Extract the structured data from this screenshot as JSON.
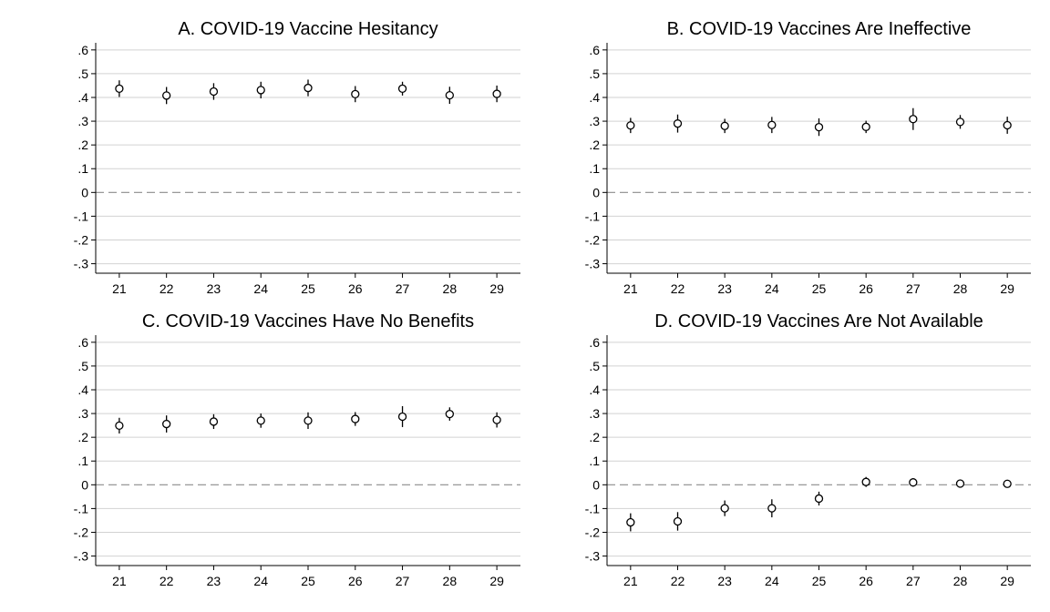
{
  "figure": {
    "panel_count": 4,
    "layout": "2x2 grid"
  },
  "chart_data": [
    {
      "type": "scatter",
      "title": "A. COVID-19 Vaccine Hesitancy",
      "xlabel": "",
      "ylabel": "",
      "x": [
        21,
        22,
        23,
        24,
        25,
        26,
        27,
        28,
        29
      ],
      "x_tick_labels": [
        "21",
        "22",
        "23",
        "24",
        "25",
        "26",
        "27",
        "28",
        "29"
      ],
      "y_ticks": [
        0.6,
        0.5,
        0.4,
        0.3,
        0.2,
        0.1,
        0,
        -0.1,
        -0.2,
        -0.3
      ],
      "y_tick_labels": [
        ".6",
        ".5",
        ".4",
        ".3",
        ".2",
        ".1",
        "0",
        "-.1",
        "-.2",
        "-.3"
      ],
      "ylim": [
        -0.34,
        0.63
      ],
      "xlim": [
        20.5,
        29.5
      ],
      "grid": true,
      "reference_line": 0,
      "marker": "hollow-circle",
      "series": [
        {
          "values": [
            0.437,
            0.408,
            0.425,
            0.431,
            0.44,
            0.414,
            0.437,
            0.409,
            0.415
          ],
          "ci_low": [
            0.402,
            0.372,
            0.39,
            0.396,
            0.405,
            0.38,
            0.408,
            0.373,
            0.38
          ],
          "ci_high": [
            0.472,
            0.444,
            0.46,
            0.466,
            0.475,
            0.448,
            0.466,
            0.445,
            0.45
          ]
        }
      ]
    },
    {
      "type": "scatter",
      "title": "B. COVID-19 Vaccines Are Ineffective",
      "xlabel": "",
      "ylabel": "",
      "x": [
        21,
        22,
        23,
        24,
        25,
        26,
        27,
        28,
        29
      ],
      "x_tick_labels": [
        "21",
        "22",
        "23",
        "24",
        "25",
        "26",
        "27",
        "28",
        "29"
      ],
      "y_ticks": [
        0.6,
        0.5,
        0.4,
        0.3,
        0.2,
        0.1,
        0,
        -0.1,
        -0.2,
        -0.3
      ],
      "y_tick_labels": [
        ".6",
        ".5",
        ".4",
        ".3",
        ".2",
        ".1",
        "0",
        "-.1",
        "-.2",
        "-.3"
      ],
      "ylim": [
        -0.34,
        0.63
      ],
      "xlim": [
        20.5,
        29.5
      ],
      "grid": true,
      "reference_line": 0,
      "marker": "hollow-circle",
      "series": [
        {
          "values": [
            0.282,
            0.29,
            0.28,
            0.284,
            0.275,
            0.276,
            0.309,
            0.297,
            0.283
          ],
          "ci_low": [
            0.25,
            0.252,
            0.25,
            0.25,
            0.238,
            0.25,
            0.263,
            0.268,
            0.247
          ],
          "ci_high": [
            0.314,
            0.328,
            0.31,
            0.318,
            0.312,
            0.302,
            0.355,
            0.326,
            0.319
          ]
        }
      ]
    },
    {
      "type": "scatter",
      "title": "C. COVID-19 Vaccines Have No Benefits",
      "xlabel": "",
      "ylabel": "",
      "x": [
        21,
        22,
        23,
        24,
        25,
        26,
        27,
        28,
        29
      ],
      "x_tick_labels": [
        "21",
        "22",
        "23",
        "24",
        "25",
        "26",
        "27",
        "28",
        "29"
      ],
      "y_ticks": [
        0.6,
        0.5,
        0.4,
        0.3,
        0.2,
        0.1,
        0,
        -0.1,
        -0.2,
        -0.3
      ],
      "y_tick_labels": [
        ".6",
        ".5",
        ".4",
        ".3",
        ".2",
        ".1",
        "0",
        "-.1",
        "-.2",
        "-.3"
      ],
      "ylim": [
        -0.34,
        0.63
      ],
      "xlim": [
        20.5,
        29.5
      ],
      "grid": true,
      "reference_line": 0,
      "marker": "hollow-circle",
      "series": [
        {
          "values": [
            0.249,
            0.256,
            0.266,
            0.27,
            0.27,
            0.277,
            0.287,
            0.298,
            0.273
          ],
          "ci_low": [
            0.216,
            0.22,
            0.235,
            0.24,
            0.235,
            0.248,
            0.243,
            0.27,
            0.241
          ],
          "ci_high": [
            0.282,
            0.292,
            0.297,
            0.3,
            0.305,
            0.306,
            0.331,
            0.326,
            0.305
          ]
        }
      ]
    },
    {
      "type": "scatter",
      "title": "D. COVID-19 Vaccines Are Not Available",
      "xlabel": "",
      "ylabel": "",
      "x": [
        21,
        22,
        23,
        24,
        25,
        26,
        27,
        28,
        29
      ],
      "x_tick_labels": [
        "21",
        "22",
        "23",
        "24",
        "25",
        "26",
        "27",
        "28",
        "29"
      ],
      "y_ticks": [
        0.6,
        0.5,
        0.4,
        0.3,
        0.2,
        0.1,
        0,
        -0.1,
        -0.2,
        -0.3
      ],
      "y_tick_labels": [
        ".6",
        ".5",
        ".4",
        ".3",
        ".2",
        ".1",
        "0",
        "-.1",
        "-.2",
        "-.3"
      ],
      "ylim": [
        -0.34,
        0.63
      ],
      "xlim": [
        20.5,
        29.5
      ],
      "grid": true,
      "reference_line": 0,
      "marker": "hollow-circle",
      "series": [
        {
          "values": [
            -0.158,
            -0.154,
            -0.099,
            -0.099,
            -0.058,
            0.012,
            0.01,
            0.005,
            0.004
          ],
          "ci_low": [
            -0.196,
            -0.193,
            -0.132,
            -0.137,
            -0.087,
            -0.009,
            -0.008,
            -0.006,
            -0.006
          ],
          "ci_high": [
            -0.12,
            -0.115,
            -0.066,
            -0.061,
            -0.029,
            0.033,
            0.028,
            0.016,
            0.014
          ]
        }
      ]
    }
  ]
}
